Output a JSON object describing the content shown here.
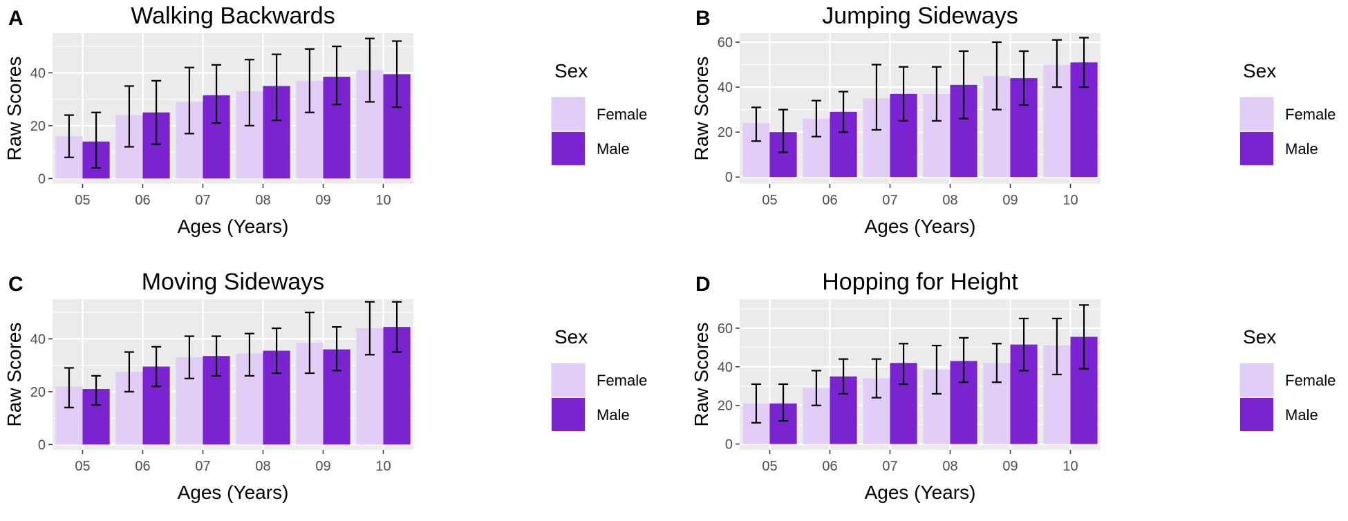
{
  "legend_title": "Sex",
  "colors": {
    "female": "#e1cdf5",
    "male": "#7a24d1",
    "panel_bg": "#ebebeb",
    "grid": "#ffffff",
    "error_bar": "#000000"
  },
  "chart_data": [
    {
      "panel_label": "A",
      "type": "bar",
      "title": "Walking Backwards",
      "xlabel": "Ages (Years)",
      "ylabel": "Raw Scores",
      "categories": [
        "05",
        "06",
        "07",
        "08",
        "09",
        "10"
      ],
      "ylim": [
        -2,
        55
      ],
      "yticks": [
        0,
        20,
        40
      ],
      "legend": [
        "Female",
        "Male"
      ],
      "series": [
        {
          "name": "Female",
          "values": [
            16,
            24,
            29,
            33,
            37,
            41
          ],
          "err_low": [
            8,
            12,
            17,
            20,
            25,
            29
          ],
          "err_high": [
            24,
            35,
            42,
            45,
            49,
            53
          ]
        },
        {
          "name": "Male",
          "values": [
            14,
            25,
            31.5,
            35,
            38.5,
            39.5
          ],
          "err_low": [
            4,
            13,
            21,
            22,
            28,
            27
          ],
          "err_high": [
            25,
            37,
            43,
            47,
            50,
            52
          ]
        }
      ]
    },
    {
      "panel_label": "B",
      "type": "bar",
      "title": "Jumping Sideways",
      "xlabel": "Ages (Years)",
      "ylabel": "Raw Scores",
      "categories": [
        "05",
        "06",
        "07",
        "08",
        "09",
        "10"
      ],
      "ylim": [
        -3,
        64
      ],
      "yticks": [
        0,
        20,
        40,
        60
      ],
      "legend": [
        "Female",
        "Male"
      ],
      "series": [
        {
          "name": "Female",
          "values": [
            24,
            26,
            35,
            37,
            45,
            50
          ],
          "err_low": [
            16,
            18,
            21,
            25,
            30,
            40
          ],
          "err_high": [
            31,
            34,
            50,
            49,
            60,
            61
          ]
        },
        {
          "name": "Male",
          "values": [
            20,
            29,
            37,
            41,
            44,
            51
          ],
          "err_low": [
            11,
            20,
            25,
            26,
            32,
            40
          ],
          "err_high": [
            30,
            38,
            49,
            56,
            56,
            62
          ]
        }
      ]
    },
    {
      "panel_label": "C",
      "type": "bar",
      "title": "Moving Sideways",
      "xlabel": "Ages (Years)",
      "ylabel": "Raw Scores",
      "categories": [
        "05",
        "06",
        "07",
        "08",
        "09",
        "10"
      ],
      "ylim": [
        -2,
        55
      ],
      "yticks": [
        0,
        20,
        40
      ],
      "legend": [
        "Female",
        "Male"
      ],
      "series": [
        {
          "name": "Female",
          "values": [
            22,
            27.5,
            33,
            34.5,
            38.5,
            44
          ],
          "err_low": [
            14,
            20,
            25,
            26,
            27,
            34
          ],
          "err_high": [
            29,
            35,
            41,
            42,
            50,
            54
          ]
        },
        {
          "name": "Male",
          "values": [
            21,
            29.5,
            33.5,
            35.5,
            36,
            44.5
          ],
          "err_low": [
            15,
            22,
            26,
            27,
            28,
            35
          ],
          "err_high": [
            26,
            37,
            41,
            44,
            44.5,
            54
          ]
        }
      ]
    },
    {
      "panel_label": "D",
      "type": "bar",
      "title": "Hopping for Height",
      "xlabel": "Ages (Years)",
      "ylabel": "Raw Scores",
      "categories": [
        "05",
        "06",
        "07",
        "08",
        "09",
        "10"
      ],
      "ylim": [
        -3,
        75
      ],
      "yticks": [
        0,
        20,
        40,
        60
      ],
      "legend": [
        "Female",
        "Male"
      ],
      "series": [
        {
          "name": "Female",
          "values": [
            21,
            29,
            34,
            38.5,
            42,
            51
          ],
          "err_low": [
            11,
            20,
            24,
            26,
            32,
            36
          ],
          "err_high": [
            31,
            38,
            44,
            51,
            52,
            65
          ]
        },
        {
          "name": "Male",
          "values": [
            21,
            35,
            42,
            43,
            51.5,
            55.5
          ],
          "err_low": [
            12,
            26,
            31,
            32,
            38,
            39
          ],
          "err_high": [
            31,
            44,
            52,
            55,
            65,
            72
          ]
        }
      ]
    }
  ]
}
